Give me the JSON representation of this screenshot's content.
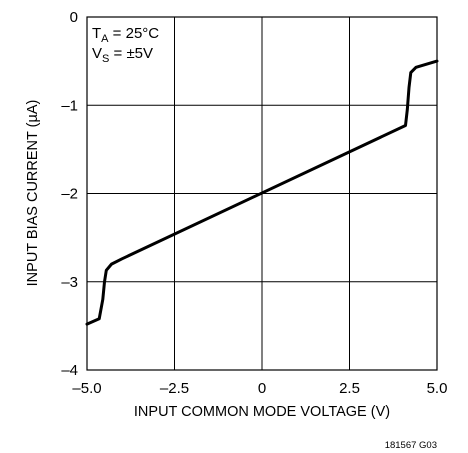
{
  "chart_data": {
    "type": "line",
    "title": "",
    "xlabel": "INPUT COMMON MODE VOLTAGE (V)",
    "ylabel": "INPUT BIAS CURRENT (µA)",
    "xlim": [
      -5.0,
      5.0
    ],
    "ylim": [
      -4,
      0
    ],
    "x_ticks": [
      -5.0,
      -2.5,
      0,
      2.5,
      5.0
    ],
    "x_tick_labels": [
      "–5.0",
      "–2.5",
      "0",
      "2.5",
      "5.0"
    ],
    "y_ticks": [
      0,
      -1,
      -2,
      -3,
      -4
    ],
    "y_tick_labels": [
      "0",
      "–1",
      "–2",
      "–3",
      "–4"
    ],
    "grid": true,
    "annotations": {
      "ta_main": "T",
      "ta_sub": "A",
      "ta_rest": " = 25°C",
      "vs_main": "V",
      "vs_sub": "S",
      "vs_rest": " = ±5V"
    },
    "series": [
      {
        "x": [
          -5.0,
          -4.65,
          -4.55,
          -4.5,
          -4.45,
          -4.3,
          -4.0,
          4.1,
          4.15,
          4.2,
          4.25,
          4.4,
          5.0
        ],
        "y": [
          -3.48,
          -3.42,
          -3.2,
          -3.0,
          -2.87,
          -2.8,
          -2.74,
          -1.23,
          -1.05,
          -0.8,
          -0.63,
          -0.57,
          -0.5
        ]
      }
    ],
    "figure_id": "181567 G03"
  }
}
